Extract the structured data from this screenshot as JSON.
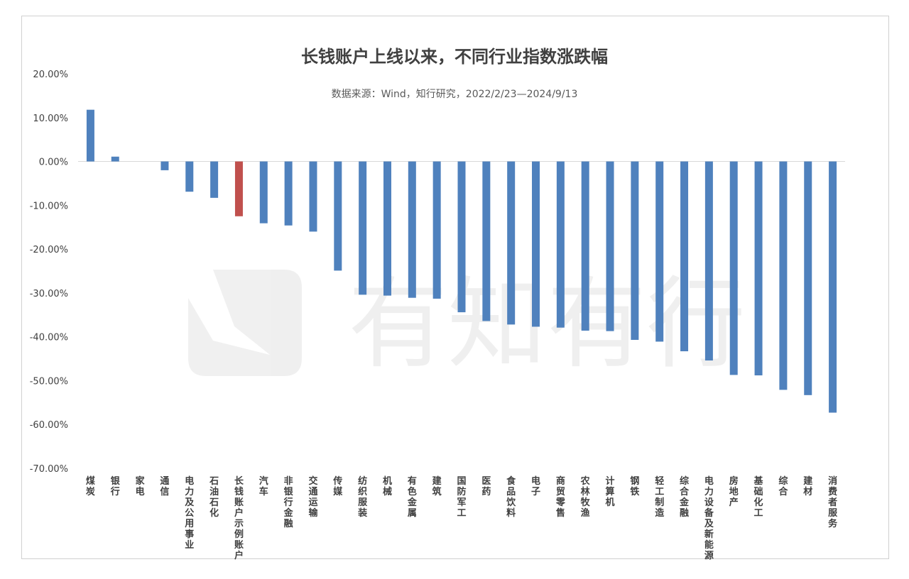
{
  "chart_data": {
    "type": "bar",
    "title": "长钱账户上线以来，不同行业指数涨跌幅",
    "subtitle": "数据来源：Wind，知行研究，2022/2/23—2024/9/13",
    "ylim": [
      -70,
      20
    ],
    "yticks": [
      20,
      10,
      0,
      -10,
      -20,
      -30,
      -40,
      -50,
      -60,
      -70
    ],
    "ytick_labels": [
      "20.00%",
      "10.00%",
      "0.00%",
      "-10.00%",
      "-20.00%",
      "-30.00%",
      "-40.00%",
      "-50.00%",
      "-60.00%",
      "-70.00%"
    ],
    "grid": false,
    "legend": "none",
    "categories": [
      "煤炭",
      "银行",
      "家电",
      "通信",
      "电力及公用事业",
      "石油石化",
      "长钱账户示例账户",
      "汽车",
      "非银行金融",
      "交通运输",
      "传媒",
      "纺织服装",
      "机械",
      "有色金属",
      "建筑",
      "国防军工",
      "医药",
      "食品饮料",
      "电子",
      "商贸零售",
      "农林牧渔",
      "计算机",
      "钢铁",
      "轻工制造",
      "综合金融",
      "电力设备及新能源",
      "房地产",
      "基础化工",
      "综合",
      "建材",
      "消费者服务"
    ],
    "values": [
      11.8,
      1.1,
      0.0,
      -2.0,
      -6.9,
      -8.3,
      -12.5,
      -14.1,
      -14.6,
      -16.0,
      -24.9,
      -30.4,
      -30.6,
      -31.1,
      -31.3,
      -34.4,
      -36.4,
      -37.2,
      -37.7,
      -37.9,
      -38.6,
      -38.7,
      -40.7,
      -41.1,
      -43.3,
      -45.4,
      -48.7,
      -48.8,
      -52.1,
      -53.3,
      -57.3
    ],
    "highlight_index": 6,
    "colors": {
      "bar": "#4f81bd",
      "highlight": "#c0504d",
      "axis": "#d9d9d9",
      "text": "#404040"
    }
  },
  "watermark": {
    "text": "有知有行"
  }
}
